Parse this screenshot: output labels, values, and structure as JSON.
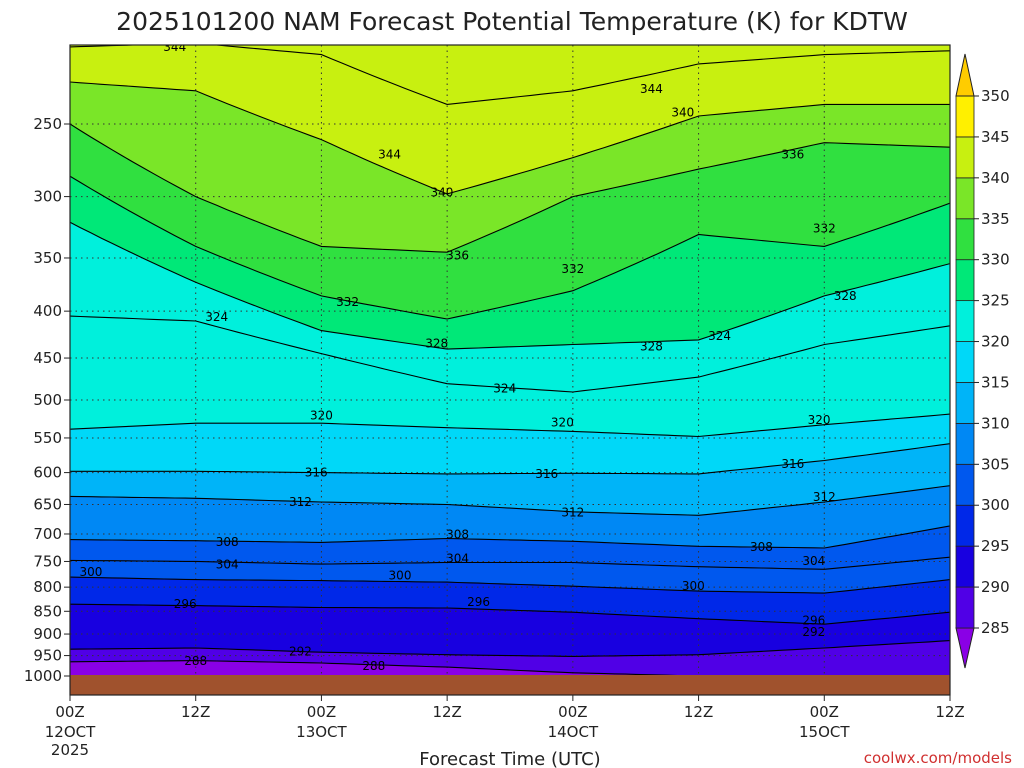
{
  "chart_data": {
    "type": "heatmap",
    "title": "2025101200 NAM Forecast Potential Temperature (K) for KDTW",
    "xlabel": "Forecast Time (UTC)",
    "ylabel": "",
    "credit": "coolwx.com/models",
    "units": "K",
    "x_ticks": [
      {
        "hours": 0,
        "label": "00Z",
        "date": "12OCT",
        "year": "2025"
      },
      {
        "hours": 12,
        "label": "12Z",
        "date": "",
        "year": ""
      },
      {
        "hours": 24,
        "label": "00Z",
        "date": "13OCT",
        "year": ""
      },
      {
        "hours": 36,
        "label": "12Z",
        "date": "",
        "year": ""
      },
      {
        "hours": 48,
        "label": "00Z",
        "date": "14OCT",
        "year": ""
      },
      {
        "hours": 60,
        "label": "12Z",
        "date": "",
        "year": ""
      },
      {
        "hours": 72,
        "label": "00Z",
        "date": "15OCT",
        "year": ""
      },
      {
        "hours": 84,
        "label": "12Z",
        "date": "",
        "year": ""
      }
    ],
    "xlim": [
      0,
      84
    ],
    "y_ticks_hpa": [
      250,
      300,
      350,
      400,
      450,
      500,
      550,
      600,
      650,
      700,
      750,
      800,
      850,
      900,
      950,
      1000
    ],
    "ylim_hpa": [
      200,
      1020
    ],
    "colorbar": {
      "levels": [
        285,
        290,
        295,
        300,
        305,
        310,
        315,
        320,
        325,
        330,
        335,
        340,
        345,
        350
      ],
      "colors": [
        "#8a00e6",
        "#5000e6",
        "#1800e0",
        "#0028e8",
        "#0058ee",
        "#0088f4",
        "#00b4f8",
        "#00d8f8",
        "#00f0dc",
        "#00e878",
        "#30e040",
        "#7ae628",
        "#c8f010",
        "#fff000",
        "#ffcc00"
      ]
    },
    "series": [
      {
        "name": "288",
        "theta": 288,
        "points": [
          [
            0,
            965
          ],
          [
            12,
            962
          ],
          [
            24,
            968
          ],
          [
            36,
            978
          ],
          [
            48,
            992
          ],
          [
            60,
            1000
          ]
        ]
      },
      {
        "name": "292",
        "theta": 292,
        "points": [
          [
            0,
            935
          ],
          [
            12,
            932
          ],
          [
            24,
            942
          ],
          [
            36,
            948
          ],
          [
            48,
            952
          ],
          [
            60,
            948
          ],
          [
            72,
            932
          ],
          [
            84,
            915
          ]
        ]
      },
      {
        "name": "296",
        "theta": 296,
        "points": [
          [
            0,
            835
          ],
          [
            12,
            838
          ],
          [
            24,
            842
          ],
          [
            36,
            843
          ],
          [
            48,
            852
          ],
          [
            60,
            866
          ],
          [
            72,
            878
          ],
          [
            84,
            852
          ]
        ]
      },
      {
        "name": "300",
        "theta": 300,
        "points": [
          [
            0,
            780
          ],
          [
            12,
            785
          ],
          [
            24,
            787
          ],
          [
            36,
            790
          ],
          [
            48,
            798
          ],
          [
            60,
            808
          ],
          [
            72,
            812
          ],
          [
            84,
            785
          ]
        ]
      },
      {
        "name": "304",
        "theta": 304,
        "points": [
          [
            0,
            748
          ],
          [
            12,
            750
          ],
          [
            24,
            755
          ],
          [
            36,
            752
          ],
          [
            48,
            752
          ],
          [
            60,
            760
          ],
          [
            72,
            765
          ],
          [
            84,
            742
          ]
        ]
      },
      {
        "name": "308",
        "theta": 308,
        "points": [
          [
            0,
            710
          ],
          [
            12,
            712
          ],
          [
            24,
            715
          ],
          [
            36,
            708
          ],
          [
            48,
            713
          ],
          [
            60,
            722
          ],
          [
            72,
            725
          ],
          [
            84,
            686
          ]
        ]
      },
      {
        "name": "312",
        "theta": 312,
        "points": [
          [
            0,
            637
          ],
          [
            12,
            640
          ],
          [
            24,
            646
          ],
          [
            36,
            650
          ],
          [
            48,
            662
          ],
          [
            60,
            668
          ],
          [
            72,
            646
          ],
          [
            84,
            620
          ]
        ]
      },
      {
        "name": "316",
        "theta": 316,
        "points": [
          [
            0,
            598
          ],
          [
            12,
            598
          ],
          [
            24,
            600
          ],
          [
            36,
            602
          ],
          [
            48,
            601
          ],
          [
            60,
            602
          ],
          [
            72,
            582
          ],
          [
            84,
            558
          ]
        ]
      },
      {
        "name": "320",
        "theta": 320,
        "points": [
          [
            0,
            538
          ],
          [
            12,
            530
          ],
          [
            24,
            530
          ],
          [
            36,
            536
          ],
          [
            48,
            541
          ],
          [
            60,
            548
          ],
          [
            72,
            532
          ],
          [
            84,
            518
          ]
        ]
      },
      {
        "name": "324",
        "theta": 324,
        "points": [
          [
            0,
            405
          ],
          [
            12,
            410
          ],
          [
            24,
            445
          ],
          [
            36,
            480
          ],
          [
            48,
            490
          ],
          [
            60,
            472
          ],
          [
            72,
            435
          ],
          [
            84,
            415
          ]
        ]
      },
      {
        "name": "328",
        "theta": 328,
        "points": [
          [
            0,
            320
          ],
          [
            12,
            372
          ],
          [
            24,
            420
          ],
          [
            36,
            440
          ],
          [
            48,
            435
          ],
          [
            60,
            430
          ],
          [
            72,
            385
          ],
          [
            84,
            355
          ]
        ]
      },
      {
        "name": "332",
        "theta": 332,
        "points": [
          [
            0,
            285
          ],
          [
            12,
            340
          ],
          [
            24,
            385
          ],
          [
            36,
            408
          ],
          [
            48,
            380
          ],
          [
            60,
            330
          ],
          [
            72,
            340
          ],
          [
            84,
            305
          ]
        ]
      },
      {
        "name": "336",
        "theta": 336,
        "points": [
          [
            0,
            250
          ],
          [
            12,
            300
          ],
          [
            24,
            340
          ],
          [
            36,
            345
          ],
          [
            48,
            300
          ],
          [
            60,
            280
          ],
          [
            72,
            262
          ],
          [
            84,
            265
          ]
        ]
      },
      {
        "name": "340",
        "theta": 340,
        "points": [
          [
            0,
            225
          ],
          [
            12,
            230
          ],
          [
            24,
            260
          ],
          [
            36,
            298
          ],
          [
            48,
            272
          ],
          [
            60,
            245
          ],
          [
            72,
            238
          ],
          [
            84,
            238
          ]
        ]
      },
      {
        "name": "344",
        "theta": 344,
        "points": [
          [
            0,
            206
          ],
          [
            12,
            204
          ],
          [
            24,
            210
          ],
          [
            36,
            238
          ],
          [
            48,
            230
          ],
          [
            60,
            215
          ],
          [
            72,
            210
          ],
          [
            84,
            208
          ]
        ]
      }
    ],
    "contour_labels": [
      {
        "text": "344",
        "hours": 10,
        "hpa": 206
      },
      {
        "text": "344",
        "hours": 30.5,
        "hpa": 270
      },
      {
        "text": "344",
        "hours": 55.5,
        "hpa": 229
      },
      {
        "text": "340",
        "hours": 35.5,
        "hpa": 297
      },
      {
        "text": "340",
        "hours": 58.5,
        "hpa": 243
      },
      {
        "text": "336",
        "hours": 37,
        "hpa": 348
      },
      {
        "text": "336",
        "hours": 69,
        "hpa": 270
      },
      {
        "text": "332",
        "hours": 26.5,
        "hpa": 391
      },
      {
        "text": "332",
        "hours": 48,
        "hpa": 360
      },
      {
        "text": "332",
        "hours": 72,
        "hpa": 325
      },
      {
        "text": "328",
        "hours": 35,
        "hpa": 434
      },
      {
        "text": "328",
        "hours": 55.5,
        "hpa": 437
      },
      {
        "text": "328",
        "hours": 74,
        "hpa": 385
      },
      {
        "text": "324",
        "hours": 14,
        "hpa": 406
      },
      {
        "text": "324",
        "hours": 41.5,
        "hpa": 486
      },
      {
        "text": "324",
        "hours": 62,
        "hpa": 426
      },
      {
        "text": "320",
        "hours": 24,
        "hpa": 520
      },
      {
        "text": "320",
        "hours": 47,
        "hpa": 529
      },
      {
        "text": "320",
        "hours": 71.5,
        "hpa": 526
      },
      {
        "text": "316",
        "hours": 23.5,
        "hpa": 600
      },
      {
        "text": "316",
        "hours": 45.5,
        "hpa": 602
      },
      {
        "text": "316",
        "hours": 69,
        "hpa": 587
      },
      {
        "text": "312",
        "hours": 22,
        "hpa": 646
      },
      {
        "text": "312",
        "hours": 48,
        "hpa": 663
      },
      {
        "text": "312",
        "hours": 72,
        "hpa": 638
      },
      {
        "text": "308",
        "hours": 15,
        "hpa": 714
      },
      {
        "text": "308",
        "hours": 37,
        "hpa": 701
      },
      {
        "text": "308",
        "hours": 66,
        "hpa": 723
      },
      {
        "text": "304",
        "hours": 15,
        "hpa": 756
      },
      {
        "text": "304",
        "hours": 37,
        "hpa": 744
      },
      {
        "text": "304",
        "hours": 71,
        "hpa": 749
      },
      {
        "text": "300",
        "hours": 2,
        "hpa": 770
      },
      {
        "text": "300",
        "hours": 31.5,
        "hpa": 777
      },
      {
        "text": "300",
        "hours": 59.5,
        "hpa": 798
      },
      {
        "text": "296",
        "hours": 11,
        "hpa": 835
      },
      {
        "text": "296",
        "hours": 39,
        "hpa": 830
      },
      {
        "text": "296",
        "hours": 71,
        "hpa": 870
      },
      {
        "text": "292",
        "hours": 22,
        "hpa": 940
      },
      {
        "text": "292",
        "hours": 71,
        "hpa": 895
      },
      {
        "text": "288",
        "hours": 12,
        "hpa": 963
      },
      {
        "text": "288",
        "hours": 29,
        "hpa": 975
      }
    ]
  }
}
